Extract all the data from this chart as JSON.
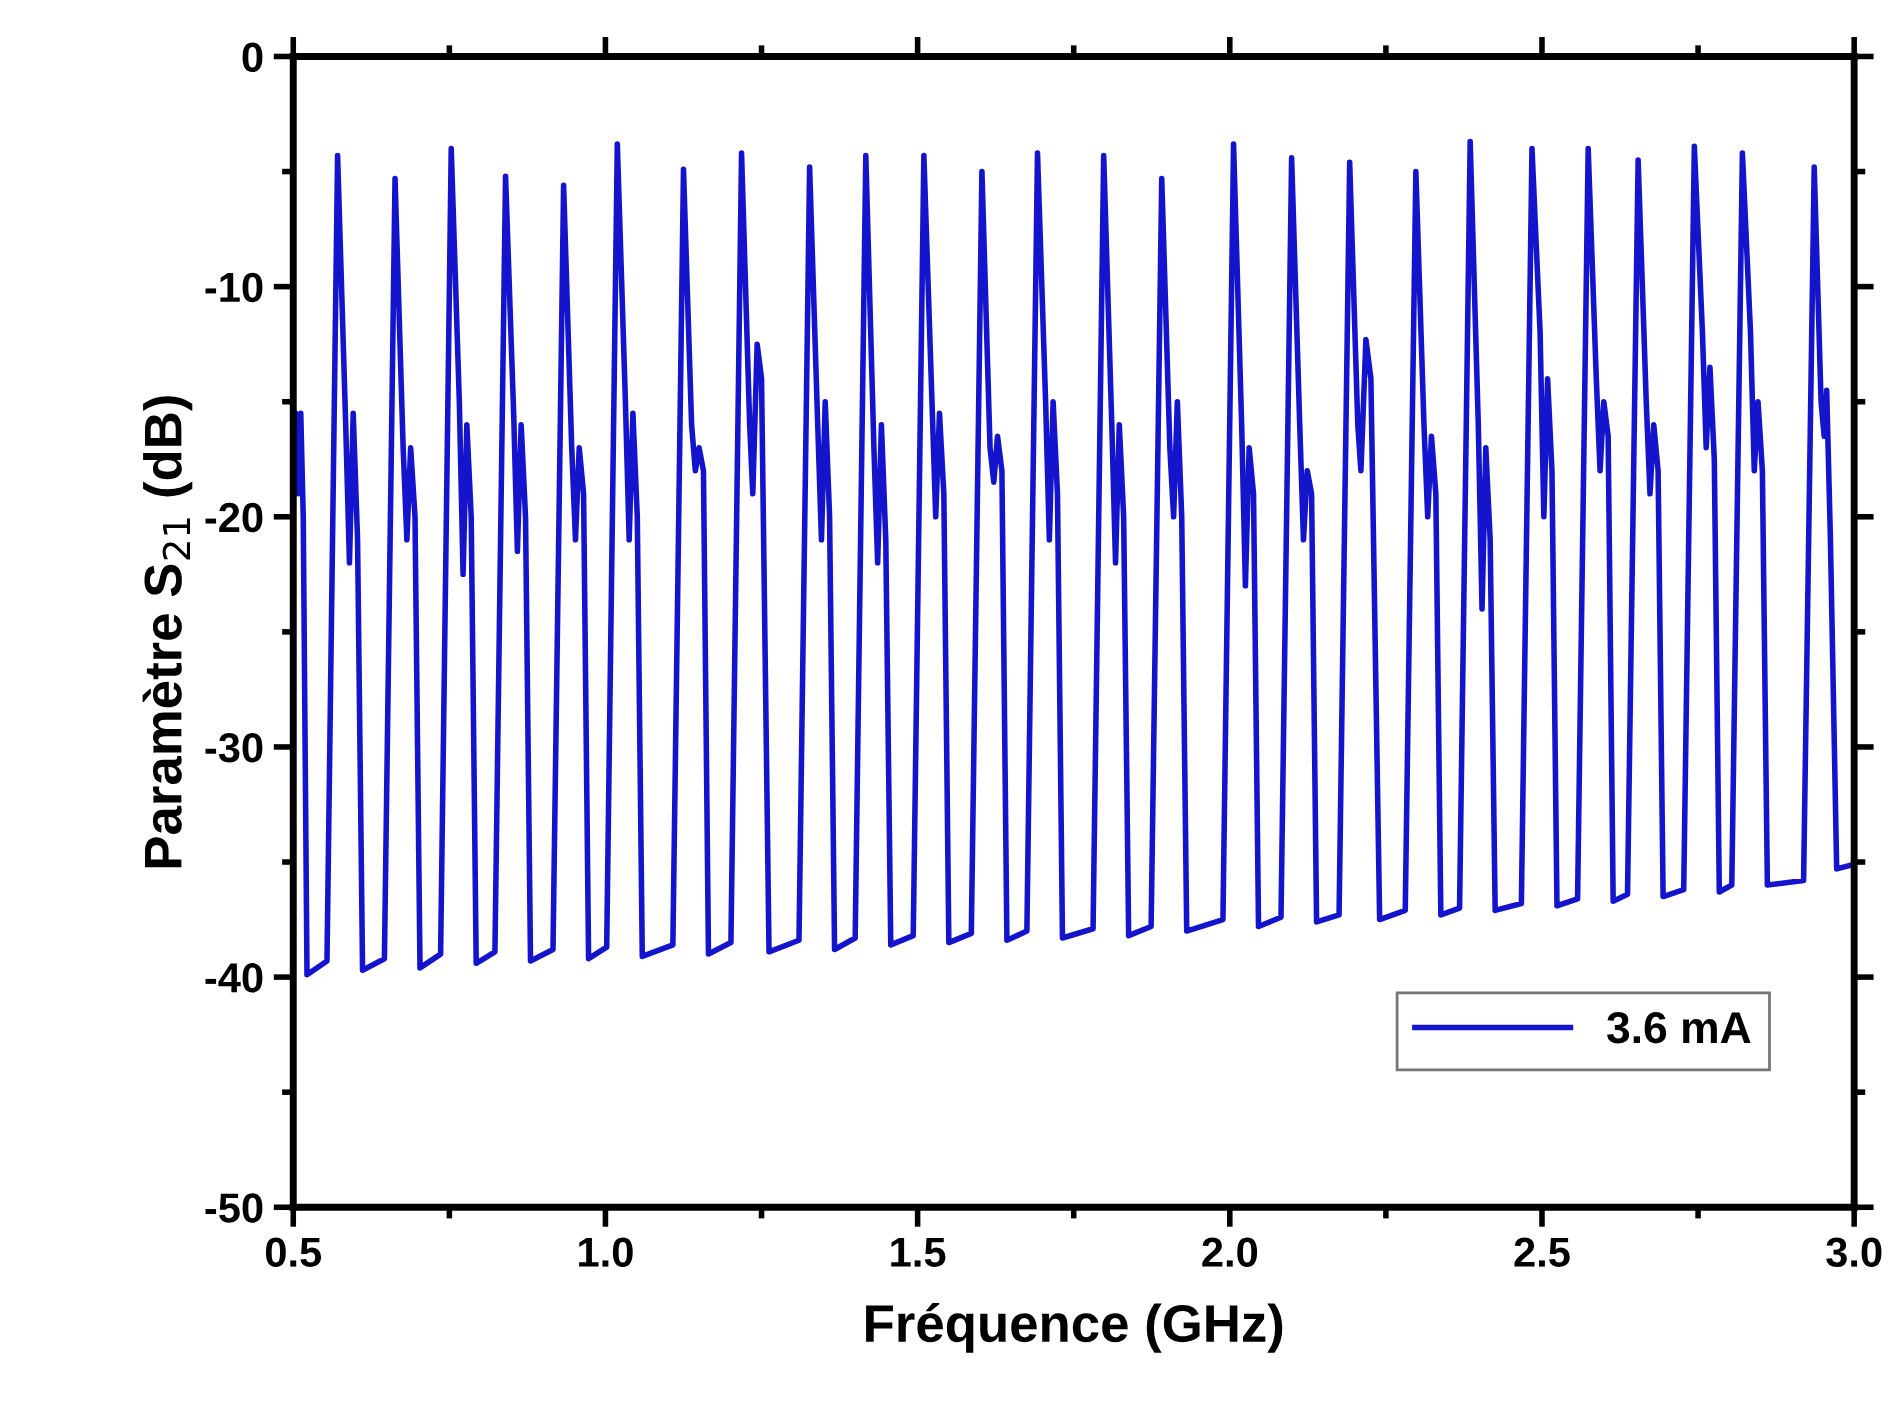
{
  "chart_data": {
    "type": "line",
    "xlabel": "Fréquence (GHz)",
    "ylabel": "Paramètre S$_{21}$ (dB)",
    "xlim": [
      0.5,
      3.0
    ],
    "xticks": [
      {
        "value": 0.5,
        "label": "0.5"
      },
      {
        "value": 1.0,
        "label": "1.0"
      },
      {
        "value": 1.5,
        "label": "1.5"
      },
      {
        "value": 2.0,
        "label": "2.0"
      },
      {
        "value": 2.5,
        "label": "2.5"
      },
      {
        "value": 3.0,
        "label": "3.0"
      }
    ],
    "ylim": [
      -50,
      0
    ],
    "yticks": [
      -50,
      -40,
      -30,
      -20,
      -10,
      0
    ],
    "grid": false,
    "legend": "bottom right",
    "marker": "none",
    "line_style": "solid",
    "series": [
      {
        "name": "3.6 mA",
        "color": "#1414cc",
        "x": [
          0.5,
          0.504,
          0.508,
          0.512,
          0.516,
          0.522,
          0.554,
          0.571,
          0.584,
          0.59,
          0.596,
          0.603,
          0.611,
          0.646,
          0.663,
          0.676,
          0.682,
          0.688,
          0.695,
          0.703,
          0.736,
          0.753,
          0.766,
          0.772,
          0.778,
          0.785,
          0.793,
          0.823,
          0.84,
          0.853,
          0.859,
          0.865,
          0.872,
          0.88,
          0.916,
          0.933,
          0.946,
          0.952,
          0.958,
          0.965,
          0.973,
          1.002,
          1.019,
          1.032,
          1.038,
          1.044,
          1.051,
          1.059,
          1.108,
          1.125,
          1.138,
          1.144,
          1.15,
          1.157,
          1.165,
          1.201,
          1.218,
          1.231,
          1.236,
          1.243,
          1.25,
          1.262,
          1.31,
          1.327,
          1.34,
          1.346,
          1.352,
          1.359,
          1.367,
          1.4,
          1.417,
          1.43,
          1.436,
          1.442,
          1.449,
          1.457,
          1.493,
          1.51,
          1.523,
          1.529,
          1.535,
          1.542,
          1.55,
          1.586,
          1.603,
          1.616,
          1.622,
          1.628,
          1.635,
          1.643,
          1.675,
          1.692,
          1.705,
          1.711,
          1.717,
          1.724,
          1.732,
          1.781,
          1.798,
          1.811,
          1.817,
          1.823,
          1.83,
          1.838,
          1.874,
          1.891,
          1.904,
          1.91,
          1.916,
          1.923,
          1.931,
          1.989,
          2.006,
          2.019,
          2.025,
          2.031,
          2.038,
          2.046,
          2.082,
          2.099,
          2.112,
          2.118,
          2.124,
          2.131,
          2.139,
          2.175,
          2.192,
          2.205,
          2.21,
          2.218,
          2.226,
          2.24,
          2.281,
          2.298,
          2.311,
          2.317,
          2.323,
          2.33,
          2.338,
          2.368,
          2.385,
          2.398,
          2.404,
          2.41,
          2.417,
          2.425,
          2.467,
          2.484,
          2.497,
          2.503,
          2.509,
          2.516,
          2.524,
          2.557,
          2.574,
          2.587,
          2.593,
          2.599,
          2.606,
          2.614,
          2.637,
          2.654,
          2.667,
          2.673,
          2.679,
          2.686,
          2.694,
          2.727,
          2.744,
          2.757,
          2.763,
          2.769,
          2.776,
          2.784,
          2.804,
          2.821,
          2.834,
          2.84,
          2.846,
          2.853,
          2.861,
          2.919,
          2.936,
          2.947,
          2.952,
          2.956,
          2.962,
          2.972,
          3.0
        ],
        "values": [
          -17,
          -15.5,
          -19,
          -15.5,
          -20,
          -39.9,
          -39.3,
          -4.3,
          -16,
          -22,
          -15.5,
          -21,
          -39.7,
          -39.2,
          -5.3,
          -17,
          -21,
          -17,
          -20,
          -39.6,
          -39,
          -4.0,
          -15,
          -22.5,
          -16,
          -20,
          -39.4,
          -38.9,
          -5.2,
          -15.5,
          -21.5,
          -16,
          -20,
          -39.3,
          -38.8,
          -5.6,
          -17,
          -21,
          -17,
          -19,
          -39.2,
          -38.7,
          -3.8,
          -15,
          -21,
          -15.5,
          -20,
          -39.1,
          -38.6,
          -4.9,
          -16,
          -18,
          -17,
          -18,
          -39,
          -38.5,
          -4.2,
          -16,
          -19,
          -12.5,
          -14,
          -38.9,
          -38.4,
          -4.8,
          -16,
          -21,
          -15,
          -20,
          -38.8,
          -38.3,
          -4.3,
          -17,
          -22,
          -16,
          -21,
          -38.6,
          -38.2,
          -4.3,
          -15,
          -20,
          -15.5,
          -19,
          -38.5,
          -38.1,
          -5.0,
          -17,
          -18.5,
          -16.5,
          -18,
          -38.4,
          -38,
          -4.2,
          -15,
          -21,
          -15,
          -19,
          -38.3,
          -37.9,
          -4.3,
          -16,
          -22,
          -16,
          -20,
          -38.2,
          -37.8,
          -5.3,
          -17,
          -20,
          -15,
          -20,
          -38,
          -37.5,
          -3.8,
          -16,
          -23,
          -17,
          -19,
          -37.8,
          -37.4,
          -4.4,
          -16,
          -21,
          -18,
          -19,
          -37.6,
          -37.3,
          -4.6,
          -16,
          -18,
          -12.3,
          -14,
          -37.5,
          -37.1,
          -5.0,
          -16,
          -20,
          -16.5,
          -19,
          -37.3,
          -37,
          -3.7,
          -16,
          -24,
          -17,
          -21,
          -37.1,
          -36.8,
          -4.0,
          -12,
          -20,
          -14,
          -18,
          -36.9,
          -36.6,
          -4.0,
          -14,
          -18,
          -15,
          -16.5,
          -36.7,
          -36.4,
          -4.5,
          -15,
          -19,
          -16,
          -18,
          -36.5,
          -36.2,
          -3.9,
          -12,
          -17,
          -13.5,
          -17.5,
          -36.3,
          -36,
          -4.2,
          -12,
          -18,
          -15,
          -18,
          -36,
          -35.8,
          -4.8,
          -15,
          -16.5,
          -14.5,
          -21,
          -35.3,
          -35.1
        ]
      }
    ]
  }
}
